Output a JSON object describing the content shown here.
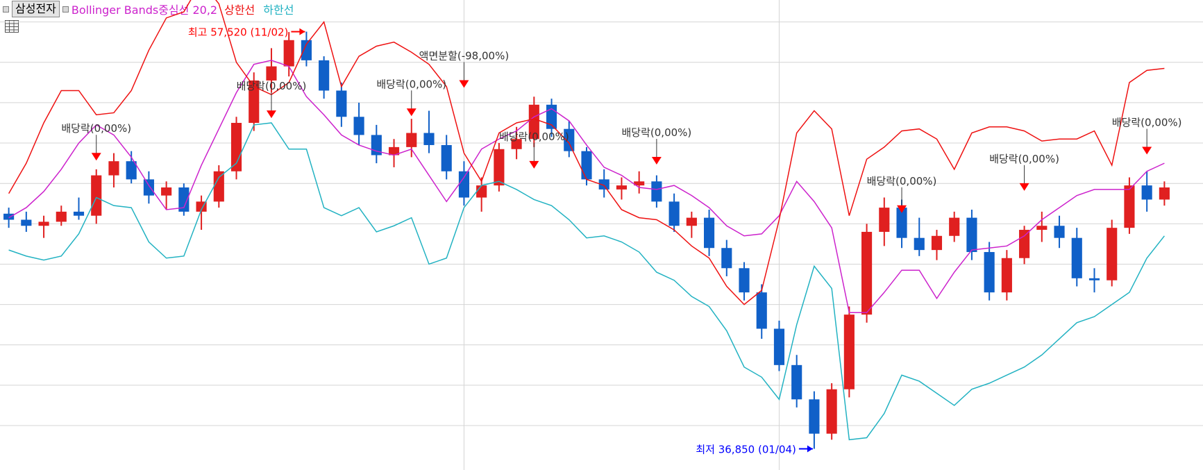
{
  "legend": {
    "stock": "삼성전자",
    "indicator": "Bollinger Bands중심선 20,2",
    "upper": "상한선",
    "lower": "하한선"
  },
  "icons": {
    "table": "table-icon",
    "legend_marker": "square-marker-icon"
  },
  "colors": {
    "up": "#e02020",
    "down": "#1060c8",
    "middle": "#cc22cc",
    "upper": "#ee1111",
    "lower": "#22b2c2",
    "grid": "#d4d4d4",
    "annotation": "#333333",
    "high": "#ff0000",
    "low": "#0000ff"
  },
  "chart_data": {
    "type": "line",
    "title": "삼성전자",
    "series": [
      {
        "name": "중심선",
        "color": "#cc22cc",
        "values": [
          48300,
          48800,
          49600,
          50700,
          52000,
          52900,
          52400,
          51300,
          49900,
          48700,
          48800,
          50900,
          52700,
          54500,
          55900,
          56100,
          55800,
          54300,
          53400,
          52400,
          51900,
          51600,
          51400,
          51700,
          50400,
          49100,
          50300,
          51700,
          52200,
          52600,
          53300,
          53700,
          53100,
          51900,
          50800,
          50400,
          49800,
          49700,
          49900,
          49400,
          48800,
          47900,
          47400,
          47500,
          48400,
          50100,
          49100,
          47800,
          43600,
          43600,
          44600,
          45700,
          45700,
          44300,
          45600,
          46700,
          46800,
          46900,
          47400,
          48200,
          48800,
          49400,
          49700,
          49700,
          49700,
          50600,
          51000
        ]
      },
      {
        "name": "상한선",
        "color": "#ee1111",
        "values": [
          49500,
          51000,
          53000,
          54600,
          54600,
          53400,
          53500,
          54600,
          56600,
          58200,
          58500,
          60000,
          58900,
          56000,
          54800,
          54400,
          55000,
          56900,
          58000,
          54800,
          56300,
          56800,
          57000,
          56500,
          55900,
          54800,
          51500,
          50100,
          52500,
          53000,
          53200,
          52900,
          52000,
          50200,
          49900,
          48700,
          48300,
          48200,
          47700,
          46900,
          46300,
          44900,
          44000,
          44700,
          48200,
          52500,
          53600,
          52700,
          48400,
          51200,
          51800,
          52600,
          52700,
          52200,
          50700,
          52500,
          52800,
          52800,
          52600,
          52100,
          52200,
          52200,
          52600,
          50900,
          55000,
          55600,
          55700
        ]
      },
      {
        "name": "하한선",
        "color": "#22b2c2",
        "values": [
          46700,
          46400,
          46200,
          46400,
          47500,
          49300,
          48900,
          48800,
          47100,
          46300,
          46400,
          48700,
          50300,
          51000,
          52900,
          53000,
          51700,
          51700,
          48800,
          48400,
          48800,
          47600,
          47900,
          48300,
          46000,
          46300,
          48800,
          49900,
          50100,
          49700,
          49200,
          48900,
          48200,
          47300,
          47400,
          47100,
          46600,
          45600,
          45200,
          44400,
          43900,
          42700,
          40900,
          40400,
          39300,
          43000,
          45900,
          44800,
          37300,
          37400,
          38600,
          40500,
          40200,
          39600,
          39000,
          39800,
          40100,
          40500,
          40900,
          41500,
          42300,
          43100,
          43400,
          44000,
          44600,
          46300,
          47400
        ]
      }
    ],
    "candles_ohlc": [
      [
        48500,
        48800,
        47800,
        48200
      ],
      [
        48200,
        48600,
        47600,
        47900
      ],
      [
        47900,
        48400,
        47300,
        48100
      ],
      [
        48100,
        48900,
        47900,
        48600
      ],
      [
        48600,
        49300,
        48200,
        48400
      ],
      [
        48400,
        50700,
        48000,
        50400
      ],
      [
        50400,
        51500,
        49800,
        51100
      ],
      [
        51100,
        51600,
        50000,
        50200
      ],
      [
        50200,
        50600,
        49000,
        49400
      ],
      [
        49400,
        50100,
        48700,
        49800
      ],
      [
        49800,
        50000,
        48400,
        48600
      ],
      [
        48600,
        49400,
        47700,
        49100
      ],
      [
        49100,
        50900,
        48800,
        50600
      ],
      [
        50600,
        53300,
        50200,
        53000
      ],
      [
        53000,
        55500,
        52600,
        55100
      ],
      [
        55100,
        56700,
        54500,
        55800
      ],
      [
        55800,
        57500,
        55300,
        57100
      ],
      [
        57100,
        57520,
        55800,
        56100
      ],
      [
        56100,
        56300,
        54200,
        54600
      ],
      [
        54600,
        55000,
        52800,
        53300
      ],
      [
        53300,
        54000,
        51900,
        52400
      ],
      [
        52400,
        52900,
        51000,
        51400
      ],
      [
        51400,
        52200,
        50800,
        51800
      ],
      [
        51800,
        53200,
        51300,
        52500
      ],
      [
        52500,
        53600,
        51500,
        51900
      ],
      [
        51900,
        52400,
        50200,
        50600
      ],
      [
        50600,
        51100,
        48900,
        49300
      ],
      [
        49300,
        50300,
        48600,
        49900
      ],
      [
        49900,
        52000,
        49600,
        51700
      ],
      [
        51700,
        52800,
        51200,
        52200
      ],
      [
        52200,
        54300,
        51800,
        53900
      ],
      [
        53900,
        54200,
        52300,
        52700
      ],
      [
        52700,
        53100,
        51300,
        51600
      ],
      [
        51600,
        51800,
        49900,
        50200
      ],
      [
        50200,
        50700,
        49300,
        49700
      ],
      [
        49700,
        50300,
        49200,
        49900
      ],
      [
        49900,
        50600,
        49500,
        50100
      ],
      [
        50100,
        50400,
        48800,
        49100
      ],
      [
        49100,
        49500,
        47600,
        47900
      ],
      [
        47900,
        48600,
        47300,
        48300
      ],
      [
        48300,
        48700,
        46400,
        46800
      ],
      [
        46800,
        47200,
        45400,
        45800
      ],
      [
        45800,
        46100,
        44200,
        44600
      ],
      [
        44600,
        45000,
        42300,
        42800
      ],
      [
        42800,
        43200,
        40700,
        41000
      ],
      [
        41000,
        41500,
        38900,
        39300
      ],
      [
        39300,
        39700,
        36850,
        37600
      ],
      [
        37600,
        40100,
        37300,
        39800
      ],
      [
        39800,
        43900,
        39400,
        43500
      ],
      [
        43500,
        48000,
        43100,
        47600
      ],
      [
        47600,
        49300,
        46900,
        48800
      ],
      [
        48800,
        49200,
        46800,
        47300
      ],
      [
        47300,
        48300,
        46400,
        46700
      ],
      [
        46700,
        47700,
        46200,
        47400
      ],
      [
        47400,
        48600,
        47100,
        48300
      ],
      [
        48300,
        48700,
        46200,
        46600
      ],
      [
        46600,
        47100,
        44200,
        44600
      ],
      [
        44600,
        46700,
        44200,
        46300
      ],
      [
        46300,
        47900,
        46000,
        47700
      ],
      [
        47700,
        48600,
        47100,
        47900
      ],
      [
        47900,
        48400,
        46800,
        47300
      ],
      [
        47300,
        47800,
        44900,
        45300
      ],
      [
        45300,
        45800,
        44600,
        45200
      ],
      [
        45200,
        48200,
        44900,
        47800
      ],
      [
        47800,
        50300,
        47500,
        49900
      ],
      [
        49900,
        50600,
        48600,
        49200
      ],
      [
        49200,
        50100,
        48900,
        49800
      ]
    ],
    "x_grid_at_candle": [
      26,
      44
    ],
    "markers": [
      {
        "text": "최고 57,520 (11/02)",
        "kind": "high",
        "candle": 17,
        "price": 57520
      },
      {
        "text": "최저 36,850 (01/04)",
        "kind": "low",
        "candle": 46,
        "price": 36850
      },
      {
        "text": "액면분할(-98,00%)",
        "kind": "event",
        "candle": 26,
        "price": 54700
      },
      {
        "text": "배당락(0,00%)",
        "kind": "event",
        "candle": 5,
        "price": 51100
      },
      {
        "text": "배당락(0,00%)",
        "kind": "event",
        "candle": 15,
        "price": 53200
      },
      {
        "text": "배당락(0,00%)",
        "kind": "event",
        "candle": 23,
        "price": 53300
      },
      {
        "text": "배당락(0,00%)",
        "kind": "event",
        "candle": 30,
        "price": 50700
      },
      {
        "text": "배당락(0,00%)",
        "kind": "event",
        "candle": 37,
        "price": 50900
      },
      {
        "text": "배당락(0,00%)",
        "kind": "event",
        "candle": 51,
        "price": 48500
      },
      {
        "text": "배당락(0,00%)",
        "kind": "event",
        "candle": 58,
        "price": 49600
      },
      {
        "text": "배당락(0,00%)",
        "kind": "event",
        "candle": 65,
        "price": 51400
      }
    ],
    "ylim": [
      35800,
      58400
    ],
    "y_grid": [
      38000,
      40000,
      42000,
      44000,
      46000,
      48000,
      50000,
      52000,
      54000,
      56000,
      58000
    ],
    "grid": true,
    "y_axis_labels": "none"
  }
}
